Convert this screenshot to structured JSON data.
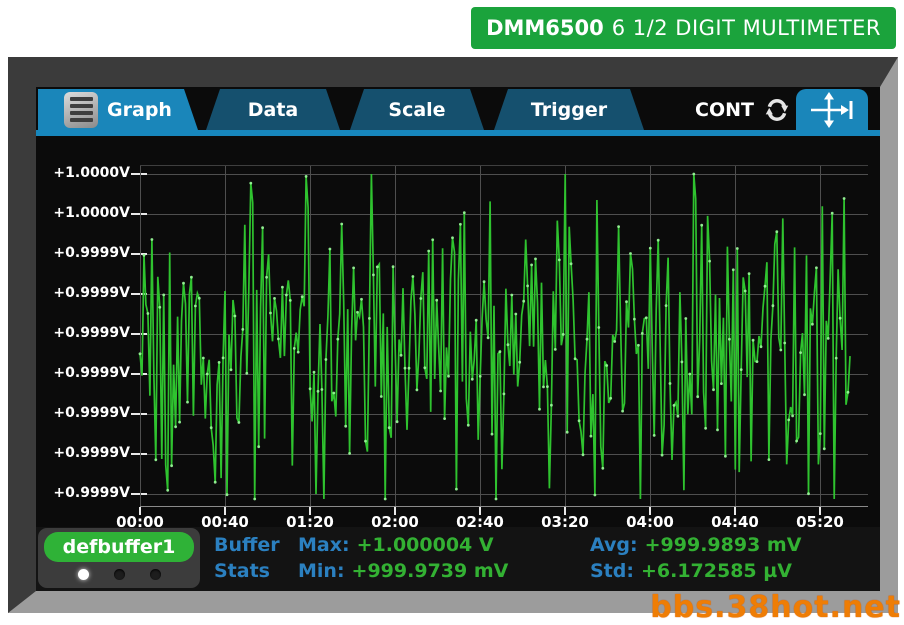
{
  "banner": {
    "model": "DMM6500",
    "subtitle": "6 1/2 DIGIT MULTIMETER"
  },
  "tabs": [
    {
      "label": "Graph",
      "active": true
    },
    {
      "label": "Data",
      "active": false
    },
    {
      "label": "Scale",
      "active": false
    },
    {
      "label": "Trigger",
      "active": false
    }
  ],
  "trigger_status": {
    "label": "CONT",
    "icon": "continuous-refresh-icon"
  },
  "pan_icon": "pan-scale-icon",
  "chart_data": {
    "type": "line",
    "x_tick_labels": [
      "00:00",
      "00:40",
      "01:20",
      "02:00",
      "02:40",
      "03:20",
      "04:00",
      "04:40",
      "05:20"
    ],
    "y_tick_labels": [
      "+1.0000V",
      "+1.0000V",
      "+0.9999V",
      "+0.9999V",
      "+0.9999V",
      "+0.9999V",
      "+0.9999V",
      "+0.9999V",
      "+0.9999V"
    ],
    "grid": true,
    "legend": "none",
    "y_range_hint": [
      "+0.9999V",
      "+1.0000V"
    ],
    "series": [
      {
        "name": "defbuffer1 readings",
        "color": "#2fc32f",
        "marker_color": "#97f597",
        "seed": 20,
        "points": 360,
        "mean_y": 185,
        "amplitude": 255,
        "spike_chance": 0.07,
        "spike_amp": 120
      }
    ]
  },
  "buffer": {
    "name": "defbuffer1",
    "dots": [
      "active",
      "inactive",
      "inactive"
    ]
  },
  "stats": {
    "label_line1": "Buffer",
    "label_line2": "Stats",
    "items": [
      {
        "label": "Max:",
        "value": "+1.000004 V"
      },
      {
        "label": "Min:",
        "value": "+999.9739 mV"
      },
      {
        "label": "Avg:",
        "value": "+999.9893 mV"
      },
      {
        "label": "Std:",
        "value": "+6.172585 µV"
      }
    ]
  },
  "watermark": "bbs.38hot.net",
  "colors": {
    "accent": "#1787bd",
    "tab_active": "#1a86ba",
    "tab_inactive": "#15506e",
    "banner_green": "#1ba33c",
    "pill_green": "#2fb237",
    "trace_green": "#2fc32f",
    "stat_label_blue": "#2b80c0",
    "stat_value_green": "#33b133",
    "watermark_orange": "#ee7d05",
    "screen_bg": "#0b0b0b",
    "frame_dark": "#3b3b3b",
    "frame_light": "#9c9c9c",
    "grid_gray": "#4f4f4f"
  }
}
